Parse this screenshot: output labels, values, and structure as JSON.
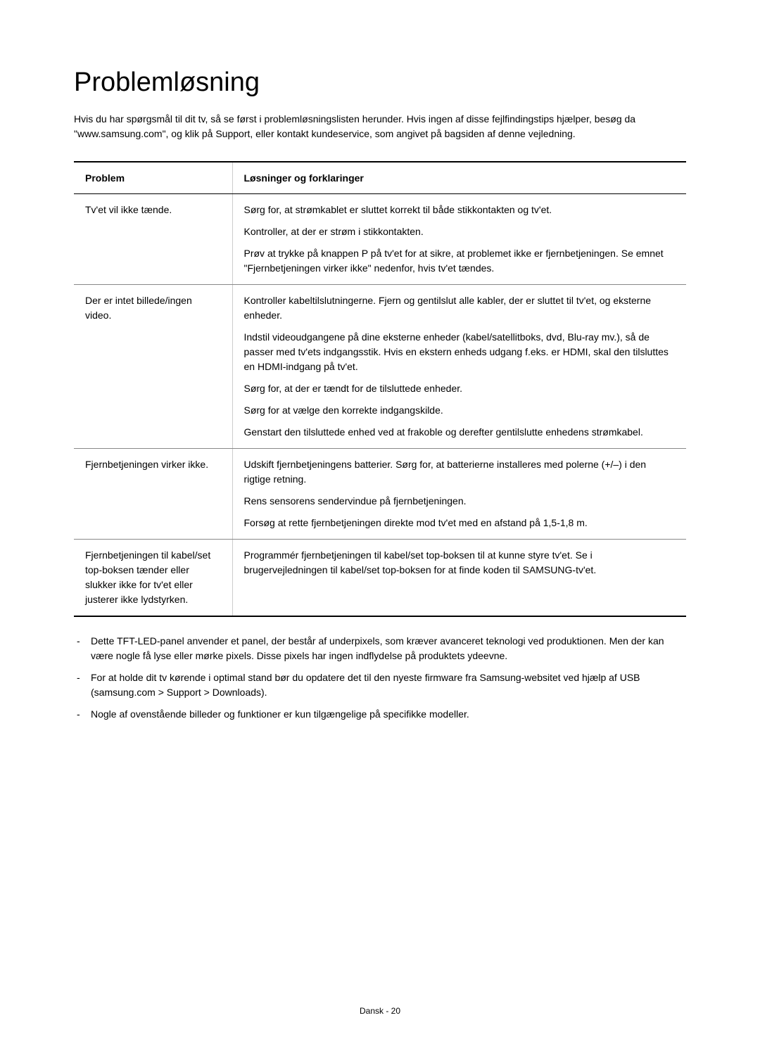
{
  "title": "Problemløsning",
  "intro": "Hvis du har spørgsmål til dit tv, så se først i problemløsningslisten herunder. Hvis ingen af disse fejlfindingstips hjælper, besøg da \"www.samsung.com\", og klik på Support, eller kontakt kundeservice, som angivet på bagsiden af denne vejledning.",
  "table": {
    "headers": {
      "problem": "Problem",
      "solutions": "Løsninger og forklaringer"
    },
    "rows": [
      {
        "problem": "Tv'et vil ikke tænde.",
        "solutions": [
          "Sørg for, at strømkablet er sluttet korrekt til både stikkontakten og tv'et.",
          "Kontroller, at der er strøm i stikkontakten.",
          "Prøv at trykke på knappen P  på tv'et for at sikre, at problemet ikke er fjernbetjeningen. Se emnet \"Fjernbetjeningen virker ikke\" nedenfor, hvis tv'et tændes."
        ]
      },
      {
        "problem": "Der er intet billede/ingen video.",
        "solutions": [
          "Kontroller kabeltilslutningerne. Fjern og gentilslut alle kabler, der er sluttet til tv'et, og eksterne enheder.",
          "Indstil videoudgangene på dine eksterne enheder (kabel/satellitboks, dvd, Blu-ray mv.), så de passer med tv'ets indgangsstik. Hvis en ekstern enheds udgang f.eks. er HDMI, skal den tilsluttes en HDMI-indgang på tv'et.",
          "Sørg for, at der er tændt for de tilsluttede enheder.",
          "Sørg for at vælge den korrekte indgangskilde.",
          "Genstart den tilsluttede enhed ved at frakoble og derefter gentilslutte enhedens strømkabel."
        ]
      },
      {
        "problem": "Fjernbetjeningen virker ikke.",
        "solutions": [
          "Udskift fjernbetjeningens batterier. Sørg for, at batterierne installeres med polerne (+/–) i den rigtige retning.",
          "Rens sensorens sendervindue på fjernbetjeningen.",
          "Forsøg at rette fjernbetjeningen direkte mod tv'et med en afstand på 1,5-1,8 m."
        ]
      },
      {
        "problem": "Fjernbetjeningen til kabel/set top-boksen tænder eller slukker ikke for tv'et eller justerer ikke lydstyrken.",
        "solutions": [
          "Programmér fjernbetjeningen til kabel/set top-boksen til at kunne styre tv'et. Se i brugervejledningen til kabel/set top-boksen for at finde koden til SAMSUNG-tv'et."
        ]
      }
    ]
  },
  "notes": [
    "Dette TFT-LED-panel anvender et panel, der består af underpixels, som kræver avanceret teknologi ved produktionen. Men der kan være nogle få lyse eller mørke pixels. Disse pixels har ingen indflydelse på produktets ydeevne.",
    "For at holde dit tv kørende i optimal stand bør du opdatere det til den nyeste firmware fra Samsung-websitet ved hjælp af USB (samsung.com > Support > Downloads).",
    "Nogle af ovenstående billeder og funktioner er kun tilgængelige på specifikke modeller."
  ],
  "footer": "Dansk - 20",
  "styles": {
    "background_color": "#ffffff",
    "text_color": "#000000",
    "title_fontsize": 38,
    "body_fontsize": 14,
    "footer_fontsize": 12,
    "border_color": "#000000",
    "inner_border_color": "#888888",
    "vertical_border_color": "#cccccc"
  }
}
